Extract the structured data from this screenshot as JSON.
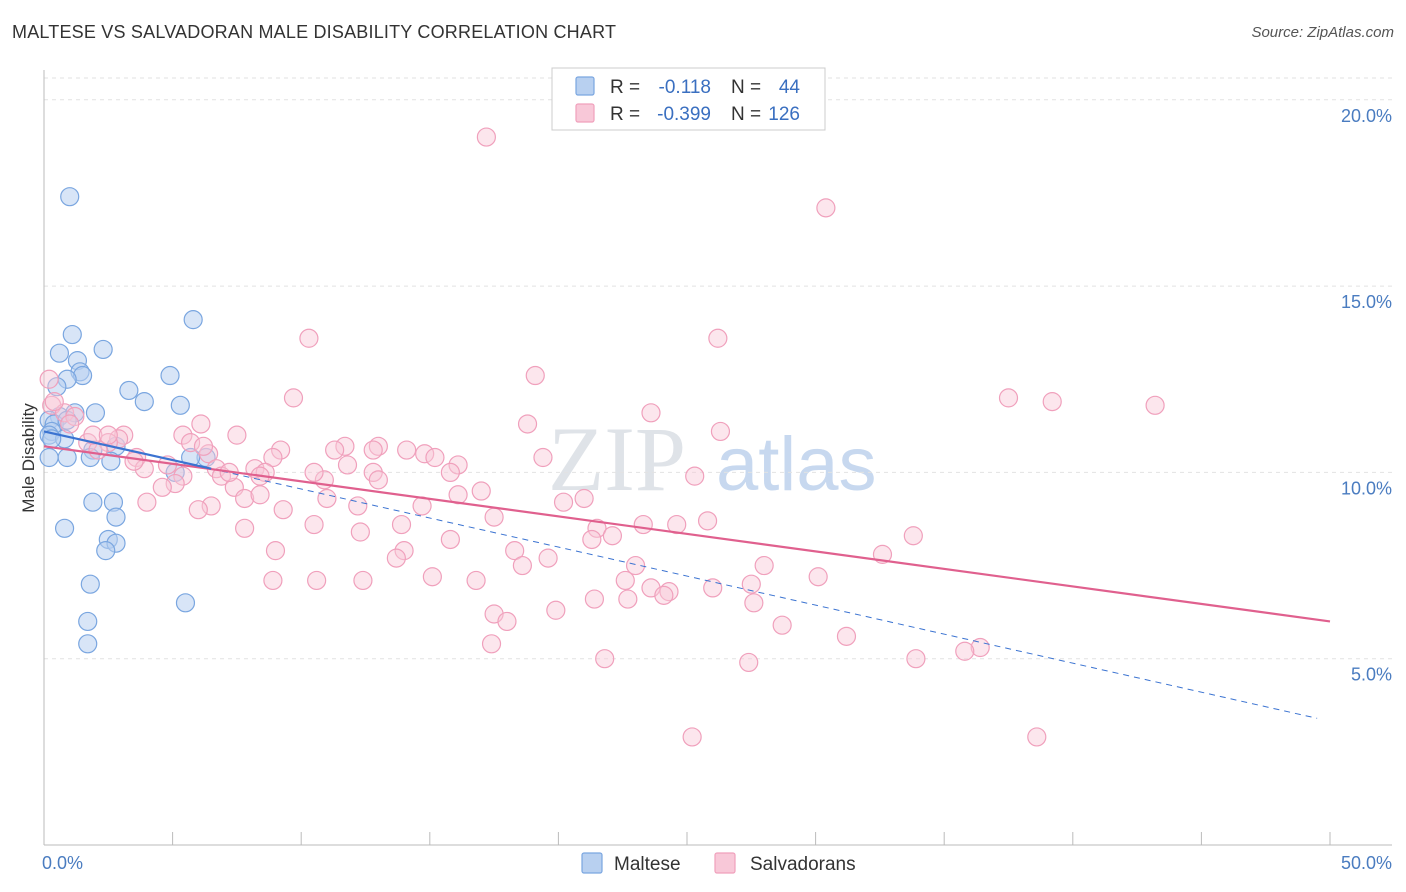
{
  "title": "MALTESE VS SALVADORAN MALE DISABILITY CORRELATION CHART",
  "source": "Source: ZipAtlas.com",
  "watermark": {
    "zip": "ZIP",
    "atlas": "atlas"
  },
  "chart_data": {
    "type": "scatter",
    "title": "MALTESE VS SALVADORAN MALE DISABILITY CORRELATION CHART",
    "xlabel": "",
    "ylabel": "Male Disability",
    "xlim": [
      0,
      50
    ],
    "ylim": [
      0,
      20.8
    ],
    "x_tick_labels": {
      "min": "0.0%",
      "max": "50.0%"
    },
    "y_ticks": [
      5,
      10,
      15,
      20
    ],
    "y_tick_labels": [
      "5.0%",
      "10.0%",
      "15.0%",
      "20.0%"
    ],
    "grid": true,
    "legend_stats": [
      {
        "r_label": "R =",
        "r_value": "-0.118",
        "n_label": "N =",
        "n_value": "44",
        "color": "#7aa6e0"
      },
      {
        "r_label": "R =",
        "r_value": "-0.399",
        "n_label": "N =",
        "n_value": "126",
        "color": "#f0a0bc"
      }
    ],
    "series": [
      {
        "name": "Maltese",
        "color": "#7aa6e0",
        "fill": "#b8d0f0",
        "line_color": "#3b73d1",
        "trend": {
          "x0": 0,
          "y0": 11.1,
          "x1": 6.5,
          "y1": 10.1,
          "dash_x1": 49.5,
          "dash_y1": 3.4
        },
        "points": [
          [
            1.0,
            17.4
          ],
          [
            5.8,
            14.1
          ],
          [
            1.1,
            13.7
          ],
          [
            0.6,
            13.2
          ],
          [
            2.3,
            13.3
          ],
          [
            1.3,
            13.0
          ],
          [
            1.4,
            12.7
          ],
          [
            1.5,
            12.6
          ],
          [
            0.9,
            12.5
          ],
          [
            0.5,
            12.3
          ],
          [
            4.9,
            12.6
          ],
          [
            3.3,
            12.2
          ],
          [
            3.9,
            11.9
          ],
          [
            5.3,
            11.8
          ],
          [
            2.0,
            11.6
          ],
          [
            0.6,
            11.5
          ],
          [
            1.2,
            11.6
          ],
          [
            0.2,
            11.4
          ],
          [
            0.4,
            11.3
          ],
          [
            0.9,
            11.4
          ],
          [
            0.3,
            11.1
          ],
          [
            0.2,
            11.0
          ],
          [
            0.8,
            10.9
          ],
          [
            2.8,
            10.7
          ],
          [
            1.9,
            10.6
          ],
          [
            0.2,
            10.4
          ],
          [
            0.9,
            10.4
          ],
          [
            1.8,
            10.4
          ],
          [
            2.6,
            10.3
          ],
          [
            6.3,
            10.4
          ],
          [
            5.7,
            10.4
          ],
          [
            5.1,
            10.0
          ],
          [
            2.7,
            9.2
          ],
          [
            1.9,
            9.2
          ],
          [
            2.8,
            8.8
          ],
          [
            0.8,
            8.5
          ],
          [
            2.5,
            8.2
          ],
          [
            2.8,
            8.1
          ],
          [
            2.4,
            7.9
          ],
          [
            1.8,
            7.0
          ],
          [
            5.5,
            6.5
          ],
          [
            1.7,
            6.0
          ],
          [
            1.7,
            5.4
          ],
          [
            0.3,
            10.9
          ]
        ]
      },
      {
        "name": "Salvadorans",
        "color": "#f0a0bc",
        "fill": "#f8c8d8",
        "line_color": "#e0608e",
        "trend": {
          "x0": 0,
          "y0": 10.7,
          "x1": 50,
          "y1": 6.0
        },
        "points": [
          [
            17.2,
            19.0
          ],
          [
            30.4,
            17.1
          ],
          [
            10.3,
            13.6
          ],
          [
            26.2,
            13.6
          ],
          [
            19.1,
            12.6
          ],
          [
            0.2,
            12.5
          ],
          [
            9.7,
            12.0
          ],
          [
            37.5,
            12.0
          ],
          [
            39.2,
            11.9
          ],
          [
            43.2,
            11.8
          ],
          [
            23.6,
            11.6
          ],
          [
            0.3,
            11.8
          ],
          [
            0.8,
            11.6
          ],
          [
            1.2,
            11.5
          ],
          [
            1.0,
            11.3
          ],
          [
            6.1,
            11.3
          ],
          [
            18.8,
            11.3
          ],
          [
            26.3,
            11.1
          ],
          [
            3.1,
            11.0
          ],
          [
            5.4,
            11.0
          ],
          [
            7.5,
            11.0
          ],
          [
            2.9,
            10.9
          ],
          [
            1.7,
            10.8
          ],
          [
            5.7,
            10.8
          ],
          [
            2.5,
            10.8
          ],
          [
            11.7,
            10.7
          ],
          [
            13.0,
            10.7
          ],
          [
            9.2,
            10.6
          ],
          [
            11.3,
            10.6
          ],
          [
            12.8,
            10.6
          ],
          [
            14.1,
            10.6
          ],
          [
            14.8,
            10.5
          ],
          [
            2.1,
            10.6
          ],
          [
            3.6,
            10.4
          ],
          [
            8.9,
            10.4
          ],
          [
            15.2,
            10.4
          ],
          [
            19.4,
            10.4
          ],
          [
            6.4,
            10.5
          ],
          [
            4.8,
            10.2
          ],
          [
            11.8,
            10.2
          ],
          [
            12.8,
            10.0
          ],
          [
            16.1,
            10.2
          ],
          [
            8.2,
            10.1
          ],
          [
            3.9,
            10.1
          ],
          [
            6.7,
            10.1
          ],
          [
            8.6,
            10.0
          ],
          [
            10.9,
            9.8
          ],
          [
            8.4,
            9.9
          ],
          [
            5.4,
            9.9
          ],
          [
            6.9,
            9.9
          ],
          [
            15.8,
            10.0
          ],
          [
            25.3,
            9.9
          ],
          [
            5.1,
            9.7
          ],
          [
            7.4,
            9.6
          ],
          [
            4.6,
            9.6
          ],
          [
            17.0,
            9.5
          ],
          [
            11.0,
            9.3
          ],
          [
            7.8,
            9.3
          ],
          [
            21.0,
            9.3
          ],
          [
            20.2,
            9.2
          ],
          [
            4.0,
            9.2
          ],
          [
            6.5,
            9.1
          ],
          [
            8.4,
            9.4
          ],
          [
            12.2,
            9.1
          ],
          [
            9.3,
            9.0
          ],
          [
            6.0,
            9.0
          ],
          [
            14.7,
            9.1
          ],
          [
            21.5,
            8.5
          ],
          [
            23.3,
            8.6
          ],
          [
            25.8,
            8.7
          ],
          [
            24.6,
            8.6
          ],
          [
            17.5,
            8.8
          ],
          [
            10.5,
            8.6
          ],
          [
            13.9,
            8.6
          ],
          [
            7.8,
            8.5
          ],
          [
            12.3,
            8.4
          ],
          [
            22.1,
            8.3
          ],
          [
            33.8,
            8.3
          ],
          [
            21.3,
            8.2
          ],
          [
            15.8,
            8.2
          ],
          [
            14.0,
            7.9
          ],
          [
            18.3,
            7.9
          ],
          [
            9.0,
            7.9
          ],
          [
            32.6,
            7.8
          ],
          [
            19.6,
            7.7
          ],
          [
            13.7,
            7.7
          ],
          [
            28.0,
            7.5
          ],
          [
            23.0,
            7.5
          ],
          [
            18.6,
            7.5
          ],
          [
            30.1,
            7.2
          ],
          [
            12.4,
            7.1
          ],
          [
            15.1,
            7.2
          ],
          [
            16.8,
            7.1
          ],
          [
            8.9,
            7.1
          ],
          [
            10.6,
            7.1
          ],
          [
            22.6,
            7.1
          ],
          [
            27.5,
            7.0
          ],
          [
            24.3,
            6.8
          ],
          [
            23.6,
            6.9
          ],
          [
            26.0,
            6.9
          ],
          [
            24.1,
            6.7
          ],
          [
            21.4,
            6.6
          ],
          [
            22.7,
            6.6
          ],
          [
            19.9,
            6.3
          ],
          [
            17.5,
            6.2
          ],
          [
            27.6,
            6.5
          ],
          [
            28.7,
            5.9
          ],
          [
            18.0,
            6.0
          ],
          [
            31.2,
            5.6
          ],
          [
            17.4,
            5.4
          ],
          [
            36.4,
            5.3
          ],
          [
            35.8,
            5.2
          ],
          [
            33.9,
            5.0
          ],
          [
            21.8,
            5.0
          ],
          [
            27.4,
            4.9
          ],
          [
            25.2,
            2.9
          ],
          [
            38.6,
            2.9
          ],
          [
            0.4,
            11.9
          ],
          [
            1.9,
            11.0
          ],
          [
            2.5,
            11.0
          ],
          [
            3.5,
            10.3
          ],
          [
            7.2,
            10.0
          ],
          [
            10.5,
            10.0
          ],
          [
            13.0,
            9.8
          ],
          [
            16.1,
            9.4
          ],
          [
            6.2,
            10.7
          ]
        ]
      }
    ]
  }
}
